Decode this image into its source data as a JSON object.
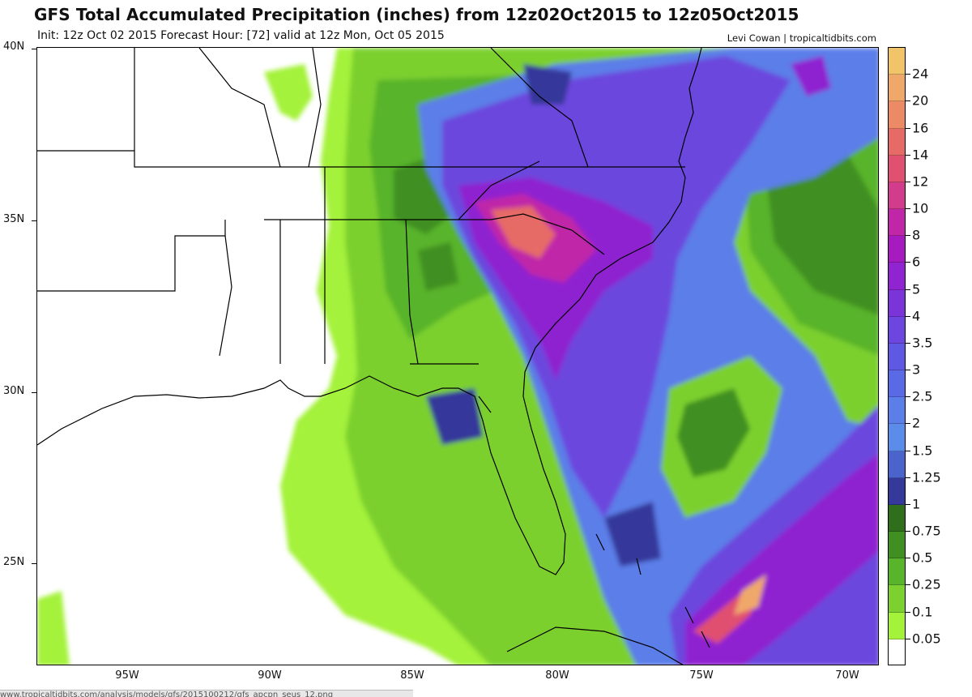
{
  "header": {
    "title": "GFS Total Accumulated Precipitation (inches) from 12z02Oct2015 to 12z05Oct2015",
    "subtitle": "Init: 12z Oct 02 2015   Forecast Hour: [72]   valid at 12z Mon, Oct 05 2015",
    "credit": "Levi Cowan | tropicaltidbits.com"
  },
  "axes": {
    "lat_labels": [
      "40N",
      "35N",
      "30N",
      "25N"
    ],
    "lon_labels": [
      "95W",
      "90W",
      "85W",
      "80W",
      "75W",
      "70W"
    ]
  },
  "colorbar": {
    "labels": [
      "24",
      "20",
      "16",
      "14",
      "12",
      "10",
      "8",
      "6",
      "5",
      "4",
      "3.5",
      "3",
      "2.5",
      "2",
      "1.5",
      "1.25",
      "1",
      "0.75",
      "0.5",
      "0.25",
      "0.1",
      "0.05"
    ],
    "colors": [
      "#f2c46a",
      "#f0a86a",
      "#ec8a66",
      "#e66b66",
      "#e05070",
      "#d23c8c",
      "#c027a8",
      "#a61bc0",
      "#8f24d0",
      "#7a34d8",
      "#6c46de",
      "#5e58e2",
      "#5a6ae6",
      "#5c7ee8",
      "#5b8cea",
      "#4a64cc",
      "#35399a",
      "#2f6f1c",
      "#3f8f22",
      "#58b42a",
      "#7cd02f",
      "#a4f23a",
      "#ffffff"
    ]
  },
  "browser": {
    "url_fragment": "www.tropicaltidbits.com/analysis/models/gfs/2015100212/gfs_apcpn_seus_12.png"
  }
}
